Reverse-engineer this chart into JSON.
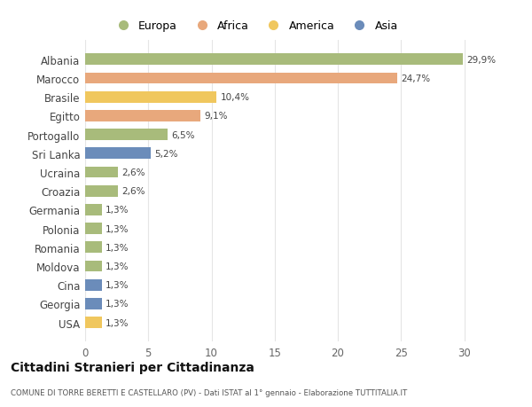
{
  "categories": [
    "Albania",
    "Marocco",
    "Brasile",
    "Egitto",
    "Portogallo",
    "Sri Lanka",
    "Ucraina",
    "Croazia",
    "Germania",
    "Polonia",
    "Romania",
    "Moldova",
    "Cina",
    "Georgia",
    "USA"
  ],
  "values": [
    29.9,
    24.7,
    10.4,
    9.1,
    6.5,
    5.2,
    2.6,
    2.6,
    1.3,
    1.3,
    1.3,
    1.3,
    1.3,
    1.3,
    1.3
  ],
  "labels": [
    "29,9%",
    "24,7%",
    "10,4%",
    "9,1%",
    "6,5%",
    "5,2%",
    "2,6%",
    "2,6%",
    "1,3%",
    "1,3%",
    "1,3%",
    "1,3%",
    "1,3%",
    "1,3%",
    "1,3%"
  ],
  "colors": [
    "#a8bb7b",
    "#e8a87c",
    "#f0c75e",
    "#e8a87c",
    "#a8bb7b",
    "#6b8cba",
    "#a8bb7b",
    "#a8bb7b",
    "#a8bb7b",
    "#a8bb7b",
    "#a8bb7b",
    "#a8bb7b",
    "#6b8cba",
    "#6b8cba",
    "#f0c75e"
  ],
  "legend_labels": [
    "Europa",
    "Africa",
    "America",
    "Asia"
  ],
  "legend_colors": [
    "#a8bb7b",
    "#e8a87c",
    "#f0c75e",
    "#6b8cba"
  ],
  "title": "Cittadini Stranieri per Cittadinanza",
  "subtitle": "COMUNE DI TORRE BERETTI E CASTELLARO (PV) - Dati ISTAT al 1° gennaio - Elaborazione TUTTITALIA.IT",
  "xlim": [
    0,
    32
  ],
  "xticks": [
    0,
    5,
    10,
    15,
    20,
    25,
    30
  ],
  "bg_color": "#ffffff",
  "grid_color": "#e5e5e5",
  "bar_height": 0.6
}
